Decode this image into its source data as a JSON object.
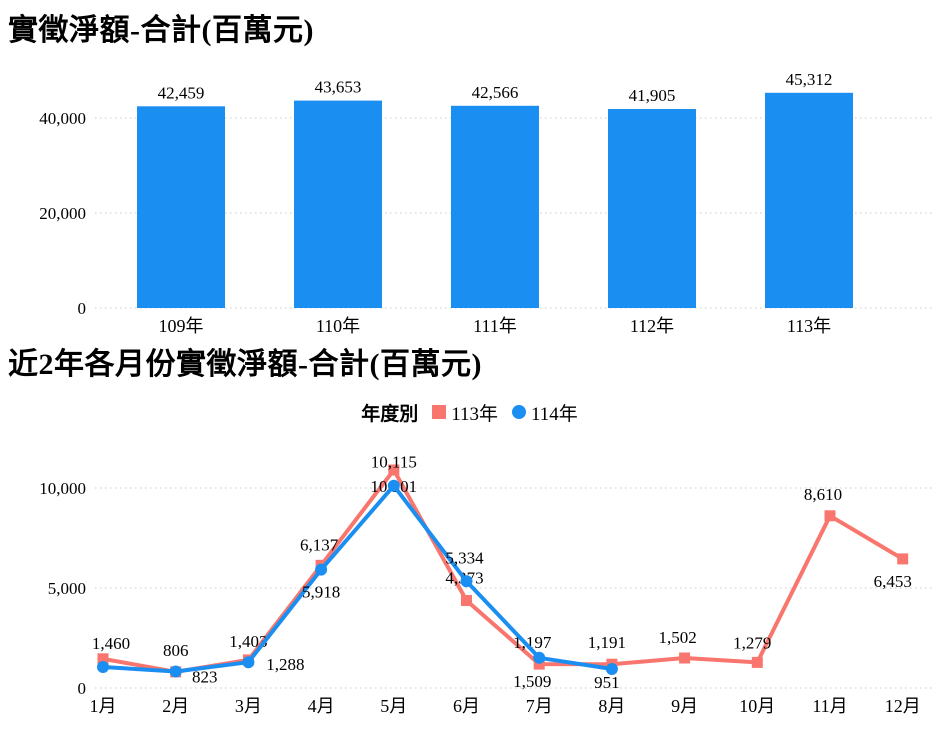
{
  "colors": {
    "bar_blue": "#1B8EF2",
    "line_red": "#F8766D",
    "line_blue": "#1B8EF2",
    "red_label": "#C3241E",
    "black_label": "#000000",
    "grid": "#c9c9c9"
  },
  "chart_data": [
    {
      "type": "bar",
      "title": "實徵淨額-合計(百萬元)",
      "categories": [
        "109年",
        "110年",
        "111年",
        "112年",
        "113年"
      ],
      "values": [
        42459,
        43653,
        42566,
        41905,
        45312
      ],
      "value_labels": [
        "42,459",
        "43,653",
        "42,566",
        "41,905",
        "45,312"
      ],
      "bar_color": "#1B8EF2",
      "ylim": [
        0,
        50000
      ],
      "yticks": [
        {
          "v": 0,
          "label": "0"
        },
        {
          "v": 20000,
          "label": "20,000"
        },
        {
          "v": 40000,
          "label": "40,000"
        }
      ],
      "grid": "dotted-horizontal"
    },
    {
      "type": "line",
      "title": "近2年各月份實徵淨額-合計(百萬元)",
      "legend": {
        "title": "年度別",
        "position": "top-center",
        "items": [
          {
            "label": "113年",
            "color": "#F8766D",
            "marker": "square"
          },
          {
            "label": "114年",
            "color": "#1B8EF2",
            "marker": "circle"
          }
        ]
      },
      "categories": [
        "1月",
        "2月",
        "3月",
        "4月",
        "5月",
        "6月",
        "7月",
        "8月",
        "9月",
        "10月",
        "11月",
        "12月"
      ],
      "ylim": [
        0,
        12000
      ],
      "yticks": [
        {
          "v": 0,
          "label": "0"
        },
        {
          "v": 5000,
          "label": "5,000"
        },
        {
          "v": 10000,
          "label": "10,000"
        }
      ],
      "grid": "dotted-horizontal",
      "series": [
        {
          "name": "113年",
          "color": "#F8766D",
          "marker": "square",
          "label_color": "#C3241E",
          "points": [
            {
              "v": 1460,
              "label": "1,460",
              "dx": 8,
              "dy": -10
            },
            {
              "v": 806,
              "label": "806",
              "dx": 0,
              "dy": -16
            },
            {
              "v": 1403,
              "label": "1,403",
              "dx": 0,
              "dy": -13
            },
            {
              "v": 6137,
              "label": "6,137",
              "dx": -2,
              "dy": -15
            },
            {
              "v": 10901,
              "label": "10,901",
              "dx": 0,
              "dy": 22
            },
            {
              "v": 4373,
              "label": "4,373",
              "dx": -2,
              "dy": -17
            },
            {
              "v": 1197,
              "label": "1,197",
              "dx": -7,
              "dy": -16
            },
            {
              "v": 1191,
              "label": "1,191",
              "dx": -5,
              "dy": -16
            },
            {
              "v": 1502,
              "label": "1,502",
              "dx": -7,
              "dy": -15
            },
            {
              "v": 1279,
              "label": "1,279",
              "dx": -5,
              "dy": -14
            },
            {
              "v": 8610,
              "label": "8,610",
              "dx": -7,
              "dy": -16
            },
            {
              "v": 6453,
              "label": "6,453",
              "dx": -10,
              "dy": 28
            }
          ]
        },
        {
          "name": "114年",
          "color": "#1B8EF2",
          "marker": "circle",
          "label_color": "#000000",
          "points": [
            {
              "v": 1050,
              "label": "",
              "dx": 0,
              "dy": 0
            },
            {
              "v": 823,
              "label": "823",
              "dx": 29,
              "dy": 11
            },
            {
              "v": 1288,
              "label": "1,288",
              "dx": 37,
              "dy": 8
            },
            {
              "v": 5918,
              "label": "5,918",
              "dx": 0,
              "dy": 28
            },
            {
              "v": 10115,
              "label": "10,115",
              "dx": 0,
              "dy": -18
            },
            {
              "v": 5334,
              "label": "5,334",
              "dx": -2,
              "dy": -18
            },
            {
              "v": 1509,
              "label": "1,509",
              "dx": -7,
              "dy": 29
            },
            {
              "v": 951,
              "label": "951",
              "dx": -5,
              "dy": 19
            }
          ]
        }
      ]
    }
  ]
}
